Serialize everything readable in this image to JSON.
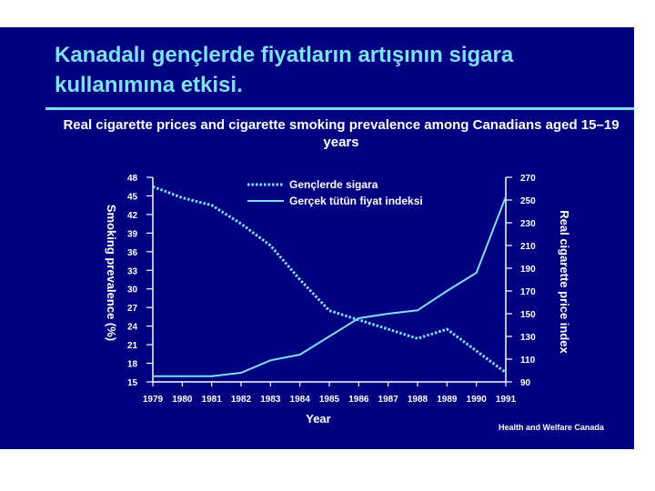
{
  "slide": {
    "title": "Kanadalı gençlerde fiyatların artışının sigara kullanımına etkisi.",
    "source": "Health and Welfare Canada",
    "background": "#000080",
    "title_color": "#7ee0f5",
    "series_color": "#7ee0f5"
  },
  "chart_data": {
    "type": "line",
    "title": "Real cigarette prices and cigarette smoking prevalence among Canadians aged 15–19 years",
    "xlabel": "Year",
    "ylabel": "Smoking prevalence (%)",
    "y2label": "Real cigarette price index",
    "x": [
      "1979",
      "1980",
      "1981",
      "1982",
      "1983",
      "1984",
      "1985",
      "1986",
      "1987",
      "1988",
      "1989",
      "1990",
      "1991"
    ],
    "ylim": [
      15,
      48
    ],
    "yticks": [
      "48",
      "45",
      "42",
      "39",
      "36",
      "33",
      "30",
      "27",
      "24",
      "21",
      "18",
      "15"
    ],
    "y2lim": [
      90,
      270
    ],
    "y2ticks": [
      "270",
      "250",
      "230",
      "210",
      "190",
      "170",
      "150",
      "130",
      "110",
      "90"
    ],
    "legend_position": "top-center",
    "series": [
      {
        "name": "Gençlerde sigara",
        "axis": "left",
        "style": "dotted",
        "values": [
          46.5,
          44.7,
          43.5,
          40.5,
          37.0,
          31.5,
          26.5,
          25.0,
          23.5,
          22.0,
          23.5,
          20.0,
          16.5
        ]
      },
      {
        "name": "Gerçek tütün fiyat indeksi",
        "axis": "right",
        "style": "solid",
        "values": [
          95,
          95,
          95,
          98,
          109,
          114,
          130,
          146,
          150,
          153,
          170,
          186,
          253
        ]
      }
    ]
  }
}
